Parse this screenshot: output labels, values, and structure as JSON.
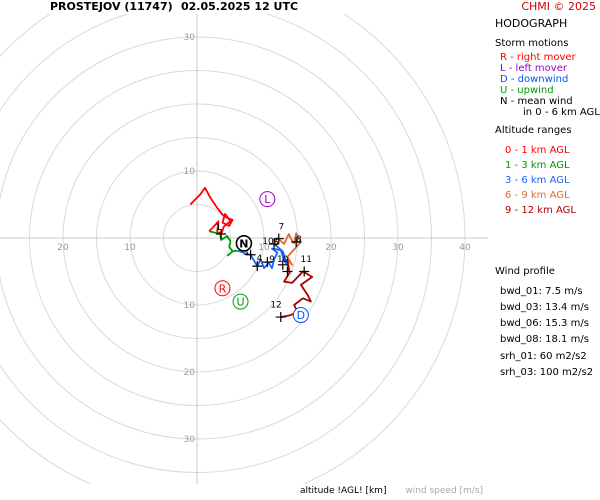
{
  "header": {
    "station": "PROSTEJOV (11747)",
    "datetime": "02.05.2025 12 UTC",
    "credit": "CHMI © 2025"
  },
  "legend": {
    "title": "HODOGRAPH",
    "storm_title": "Storm motions",
    "storm_items": [
      {
        "text": "R - right mover",
        "color": "#ff0000"
      },
      {
        "text": "L - left mover",
        "color": "#9900cc"
      },
      {
        "text": "D - downwind",
        "color": "#0055ff"
      },
      {
        "text": "U - upwind",
        "color": "#009900"
      },
      {
        "text": "N - mean wind",
        "color": "#000000"
      }
    ],
    "storm_note": "in 0 - 6 km AGL",
    "alt_title": "Altitude ranges",
    "alt_items": [
      {
        "text": "0 - 1 km AGL",
        "color": "#ff0000"
      },
      {
        "text": "1 - 3 km AGL",
        "color": "#009900"
      },
      {
        "text": "3 - 6 km AGL",
        "color": "#1a66ff"
      },
      {
        "text": "6 - 9 km AGL",
        "color": "#e06a30"
      },
      {
        "text": "9 - 12 km AGL",
        "color": "#aa0000"
      }
    ]
  },
  "wind_profile": {
    "title": "Wind profile",
    "bwd": [
      "bwd_01: 7.5 m/s",
      "bwd_03: 13.4 m/s",
      "bwd_06: 15.3 m/s",
      "bwd_08: 18.1 m/s"
    ],
    "srh": [
      "srh_01: 60 m2/s2",
      "srh_03: 100 m2/s2"
    ]
  },
  "footer": {
    "altitude_label": "altitude !AGL! [km]",
    "wind_speed_label": "wind speed [m/s]"
  },
  "chart_data": {
    "type": "hodograph",
    "rings": [
      5,
      10,
      15,
      20,
      25,
      30,
      35,
      40
    ],
    "x_tick_labels": [
      {
        "value": -20,
        "label": "20"
      },
      {
        "value": -10,
        "label": "10"
      },
      {
        "value": 10,
        "label": "10"
      },
      {
        "value": 20,
        "label": "20"
      },
      {
        "value": 30,
        "label": "30"
      },
      {
        "value": 40,
        "label": "40"
      }
    ],
    "y_tick_labels": [
      {
        "value": 30,
        "label": "30"
      },
      {
        "value": 10,
        "label": "10"
      },
      {
        "value": -10,
        "label": "10"
      },
      {
        "value": -20,
        "label": "20"
      },
      {
        "value": -30,
        "label": "30"
      }
    ],
    "segments": [
      {
        "range": "0-1 km",
        "color": "#ff0000",
        "points": [
          [
            -1.0,
            5.0
          ],
          [
            0.5,
            6.5
          ],
          [
            1.2,
            7.5
          ],
          [
            2.0,
            6.0
          ],
          [
            3.0,
            4.5
          ],
          [
            3.8,
            3.5
          ],
          [
            4.5,
            3.0
          ],
          [
            5.3,
            2.7
          ],
          [
            4.8,
            1.8
          ],
          [
            3.8,
            2.3
          ],
          [
            4.2,
            3.6
          ],
          [
            5.0,
            2.5
          ],
          [
            4.0,
            1.7
          ],
          [
            3.7,
            0.8
          ],
          [
            3.0,
            0.8
          ],
          [
            3.2,
            2.5
          ],
          [
            2.6,
            1.8
          ],
          [
            1.8,
            1.0
          ]
        ]
      },
      {
        "range": "1-3 km",
        "color": "#009900",
        "points": [
          [
            1.8,
            1.0
          ],
          [
            3.5,
            0.6
          ],
          [
            3.6,
            -0.3
          ],
          [
            4.5,
            0.3
          ],
          [
            5.0,
            -0.5
          ],
          [
            4.8,
            -1.3
          ],
          [
            5.3,
            -2.0
          ],
          [
            4.6,
            -2.6
          ],
          [
            5.3,
            -2.0
          ],
          [
            6.0,
            -1.9
          ]
        ]
      },
      {
        "range": "3-6 km",
        "color": "#1a66ff",
        "points": [
          [
            6.0,
            -1.9
          ],
          [
            8.0,
            -2.5
          ],
          [
            9.0,
            -4.2
          ],
          [
            9.5,
            -3.2
          ],
          [
            10.0,
            -4.5
          ],
          [
            10.7,
            -3.7
          ],
          [
            11.2,
            -4.5
          ],
          [
            11.5,
            -3.2
          ],
          [
            12.0,
            -2.2
          ],
          [
            11.2,
            -1.6
          ],
          [
            12.5,
            -1.8
          ],
          [
            13.0,
            -3.4
          ],
          [
            13.5,
            -4.0
          ],
          [
            12.8,
            -2.0
          ],
          [
            11.5,
            -0.9
          ]
        ]
      },
      {
        "range": "6-9 km",
        "color": "#e06a30",
        "points": [
          [
            11.5,
            -0.9
          ],
          [
            12.0,
            0.0
          ],
          [
            13.0,
            -0.9
          ],
          [
            13.7,
            0.6
          ],
          [
            14.2,
            -0.4
          ],
          [
            14.5,
            -0.8
          ],
          [
            14.8,
            0.7
          ],
          [
            15.5,
            -0.6
          ],
          [
            13.5,
            -2.8
          ],
          [
            14.2,
            -4.0
          ],
          [
            13.5,
            -3.2
          ]
        ]
      },
      {
        "range": "9-12 km",
        "color": "#aa0000",
        "points": [
          [
            13.5,
            -3.2
          ],
          [
            13.8,
            -5.2
          ],
          [
            13.0,
            -6.5
          ],
          [
            14.2,
            -6.7
          ],
          [
            15.8,
            -5.0
          ],
          [
            17.2,
            -5.8
          ],
          [
            15.5,
            -7.0
          ],
          [
            16.5,
            -8.5
          ],
          [
            17.0,
            -9.5
          ],
          [
            15.8,
            -9.0
          ],
          [
            14.5,
            -10.0
          ],
          [
            15.0,
            -11.0
          ],
          [
            14.0,
            -11.5
          ],
          [
            12.5,
            -11.8
          ]
        ]
      }
    ],
    "altitude_marks": [
      {
        "label": "1",
        "x": 3.6,
        "y": 0.6
      },
      {
        "label": "3",
        "x": 8.0,
        "y": -2.5
      },
      {
        "label": "4",
        "x": 9.0,
        "y": -4.2
      },
      {
        "label": "5",
        "x": 10.5,
        "y": -3.6
      },
      {
        "label": "6",
        "x": 11.5,
        "y": -0.9
      },
      {
        "label": "7",
        "x": 12.2,
        "y": -0.1
      },
      {
        "label": "8",
        "x": 14.8,
        "y": -0.6
      },
      {
        "label": "9",
        "x": 12.8,
        "y": -4.0
      },
      {
        "label": "10",
        "x": 13.5,
        "y": -5.0
      },
      {
        "label": "11",
        "x": 16.0,
        "y": -5.0
      },
      {
        "label": "12",
        "x": 12.5,
        "y": -11.8
      }
    ],
    "mark_labels": [
      {
        "text": "1",
        "x": 3.2,
        "y": 1.2
      },
      {
        "text": "3",
        "x": 7.3,
        "y": -2.5
      },
      {
        "text": "4",
        "x": 9.3,
        "y": -3.4
      },
      {
        "text": "9",
        "x": 11.2,
        "y": -3.6
      },
      {
        "text": "10",
        "x": 12.8,
        "y": -3.6
      },
      {
        "text": "10",
        "x": 10.6,
        "y": -0.9
      },
      {
        "text": "7",
        "x": 12.6,
        "y": 1.3
      },
      {
        "text": "8",
        "x": 15.2,
        "y": -0.6
      },
      {
        "text": "5",
        "x": 11.8,
        "y": -1.1
      },
      {
        "text": "11",
        "x": 16.3,
        "y": -3.6
      },
      {
        "text": "12",
        "x": 11.8,
        "y": -10.4
      }
    ],
    "storm_motions": [
      {
        "label": "R",
        "x": 3.8,
        "y": -7.5,
        "color": "#ff0000",
        "bold": false
      },
      {
        "label": "L",
        "x": 10.5,
        "y": 5.8,
        "color": "#9900cc",
        "bold": false
      },
      {
        "label": "D",
        "x": 15.5,
        "y": -11.5,
        "color": "#0055ff",
        "bold": false
      },
      {
        "label": "U",
        "x": 6.5,
        "y": -9.5,
        "color": "#009900",
        "bold": false
      },
      {
        "label": "N",
        "x": 7.0,
        "y": -0.8,
        "color": "#000000",
        "bold": true
      }
    ]
  }
}
